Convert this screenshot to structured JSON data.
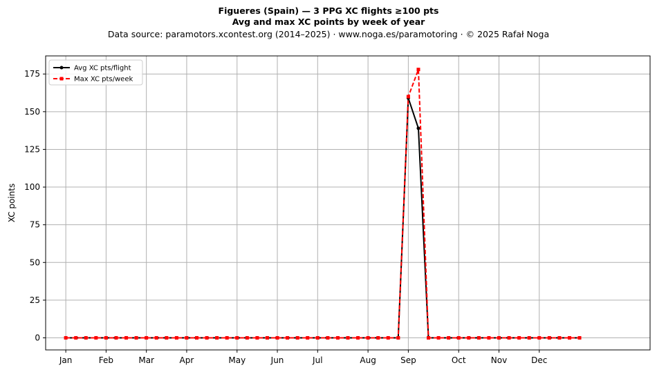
{
  "header": {
    "title": "Figueres (Spain)  —  3 PPG XC flights ≥100 pts",
    "subtitle": "Avg and max XC points by week of year",
    "source": "Data source: paramotors.xcontest.org (2014–2025)  ·  www.noga.es/paramotoring  ·  © 2025 Rafał Noga"
  },
  "chart_data": {
    "type": "line",
    "title": "Figueres (Spain)  —  3 PPG XC flights ≥100 pts",
    "subtitle": "Avg and max XC points by week of year",
    "xlabel": "",
    "ylabel": "XC points",
    "xlim": [
      -2,
      58
    ],
    "ylim": [
      -8,
      187
    ],
    "grid": true,
    "legend_position": "top-left",
    "x_ticks": [
      {
        "label": "Jan",
        "week": 0
      },
      {
        "label": "Feb",
        "week": 4
      },
      {
        "label": "Mar",
        "week": 8
      },
      {
        "label": "Apr",
        "week": 12
      },
      {
        "label": "May",
        "week": 17
      },
      {
        "label": "Jun",
        "week": 21
      },
      {
        "label": "Jul",
        "week": 25
      },
      {
        "label": "Aug",
        "week": 30
      },
      {
        "label": "Sep",
        "week": 34
      },
      {
        "label": "Oct",
        "week": 39
      },
      {
        "label": "Nov",
        "week": 43
      },
      {
        "label": "Dec",
        "week": 47
      }
    ],
    "y_ticks": [
      0,
      25,
      50,
      75,
      100,
      125,
      150,
      175
    ],
    "x": [
      0,
      1,
      2,
      3,
      4,
      5,
      6,
      7,
      8,
      9,
      10,
      11,
      12,
      13,
      14,
      15,
      16,
      17,
      18,
      19,
      20,
      21,
      22,
      23,
      24,
      25,
      26,
      27,
      28,
      29,
      30,
      31,
      32,
      33,
      34,
      35,
      36,
      37,
      38,
      39,
      40,
      41,
      42,
      43,
      44,
      45,
      46,
      47,
      48,
      49,
      50,
      51
    ],
    "series": [
      {
        "name": "Avg XC pts/flight",
        "color": "#000000",
        "style": "solid",
        "marker": "circle",
        "values": [
          0,
          0,
          0,
          0,
          0,
          0,
          0,
          0,
          0,
          0,
          0,
          0,
          0,
          0,
          0,
          0,
          0,
          0,
          0,
          0,
          0,
          0,
          0,
          0,
          0,
          0,
          0,
          0,
          0,
          0,
          0,
          0,
          0,
          0,
          159,
          139,
          0,
          0,
          0,
          0,
          0,
          0,
          0,
          0,
          0,
          0,
          0,
          0,
          0,
          0,
          0,
          0
        ]
      },
      {
        "name": "Max XC pts/week",
        "color": "#ff0000",
        "style": "dashed",
        "marker": "square",
        "values": [
          0,
          0,
          0,
          0,
          0,
          0,
          0,
          0,
          0,
          0,
          0,
          0,
          0,
          0,
          0,
          0,
          0,
          0,
          0,
          0,
          0,
          0,
          0,
          0,
          0,
          0,
          0,
          0,
          0,
          0,
          0,
          0,
          0,
          0,
          160,
          178,
          0,
          0,
          0,
          0,
          0,
          0,
          0,
          0,
          0,
          0,
          0,
          0,
          0,
          0,
          0,
          0
        ]
      }
    ]
  }
}
